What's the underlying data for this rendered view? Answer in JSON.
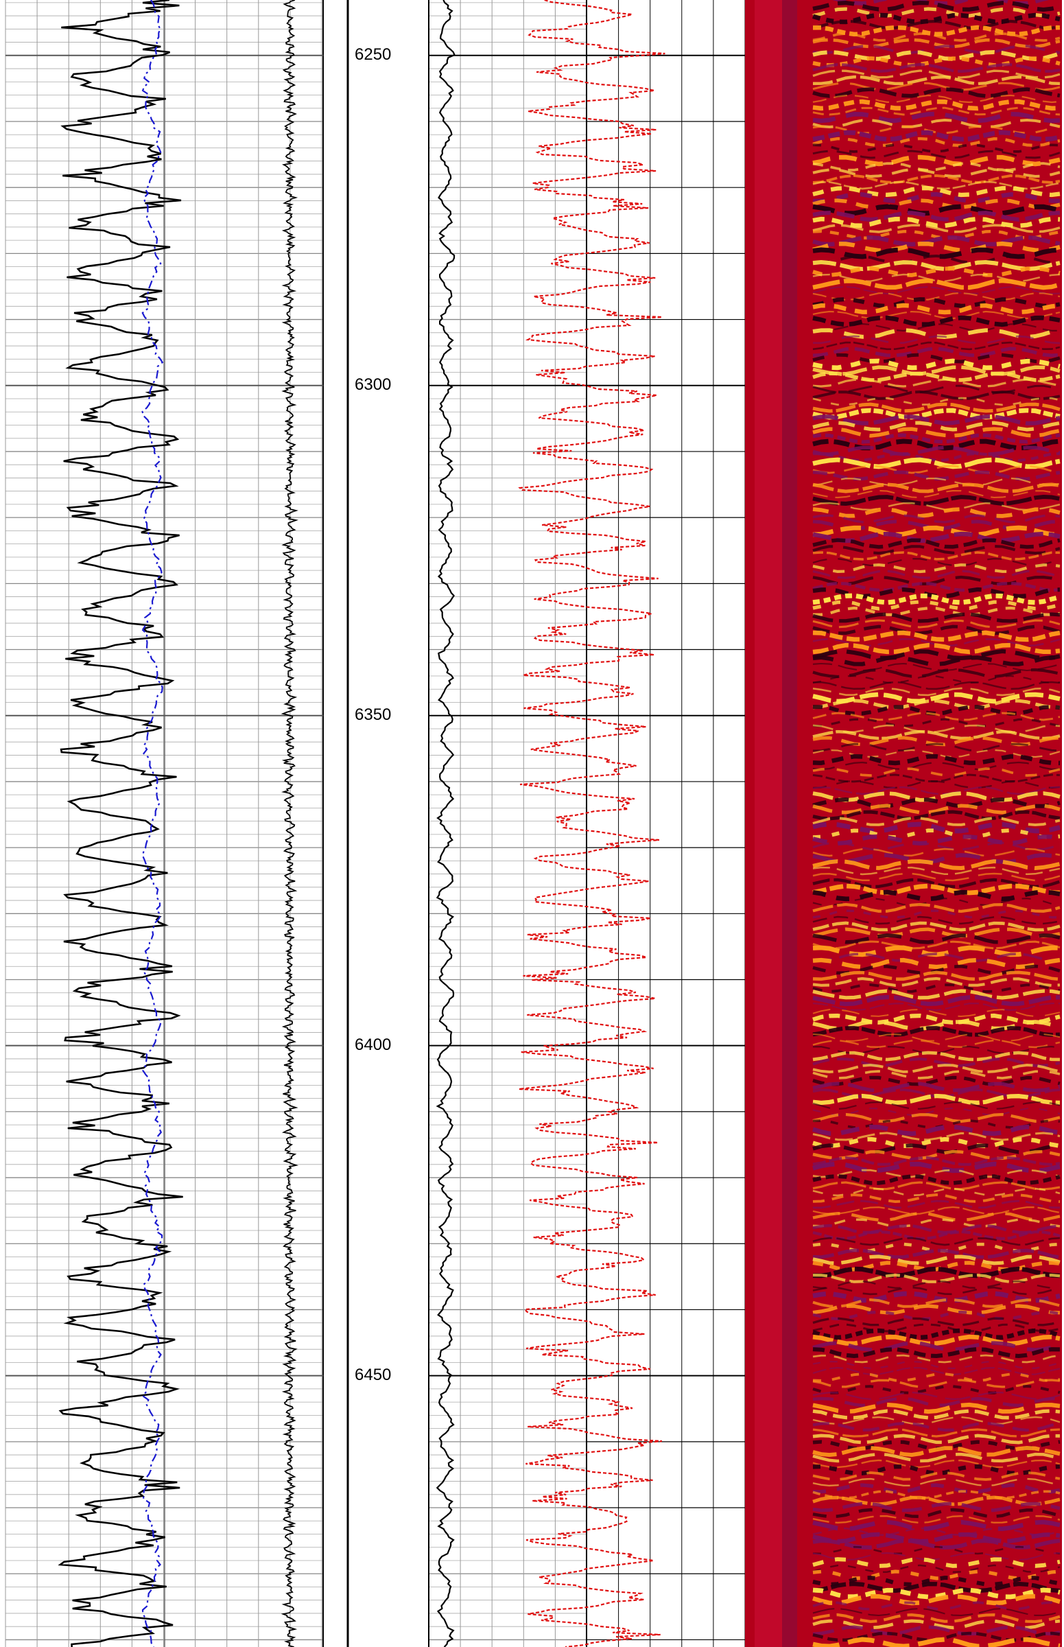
{
  "chart_data": {
    "type": "well-log",
    "ylim": [
      6241.6,
      6491.1
    ],
    "yticks": [
      6250,
      6300,
      6350,
      6400,
      6450
    ],
    "grid": true
  }
}
